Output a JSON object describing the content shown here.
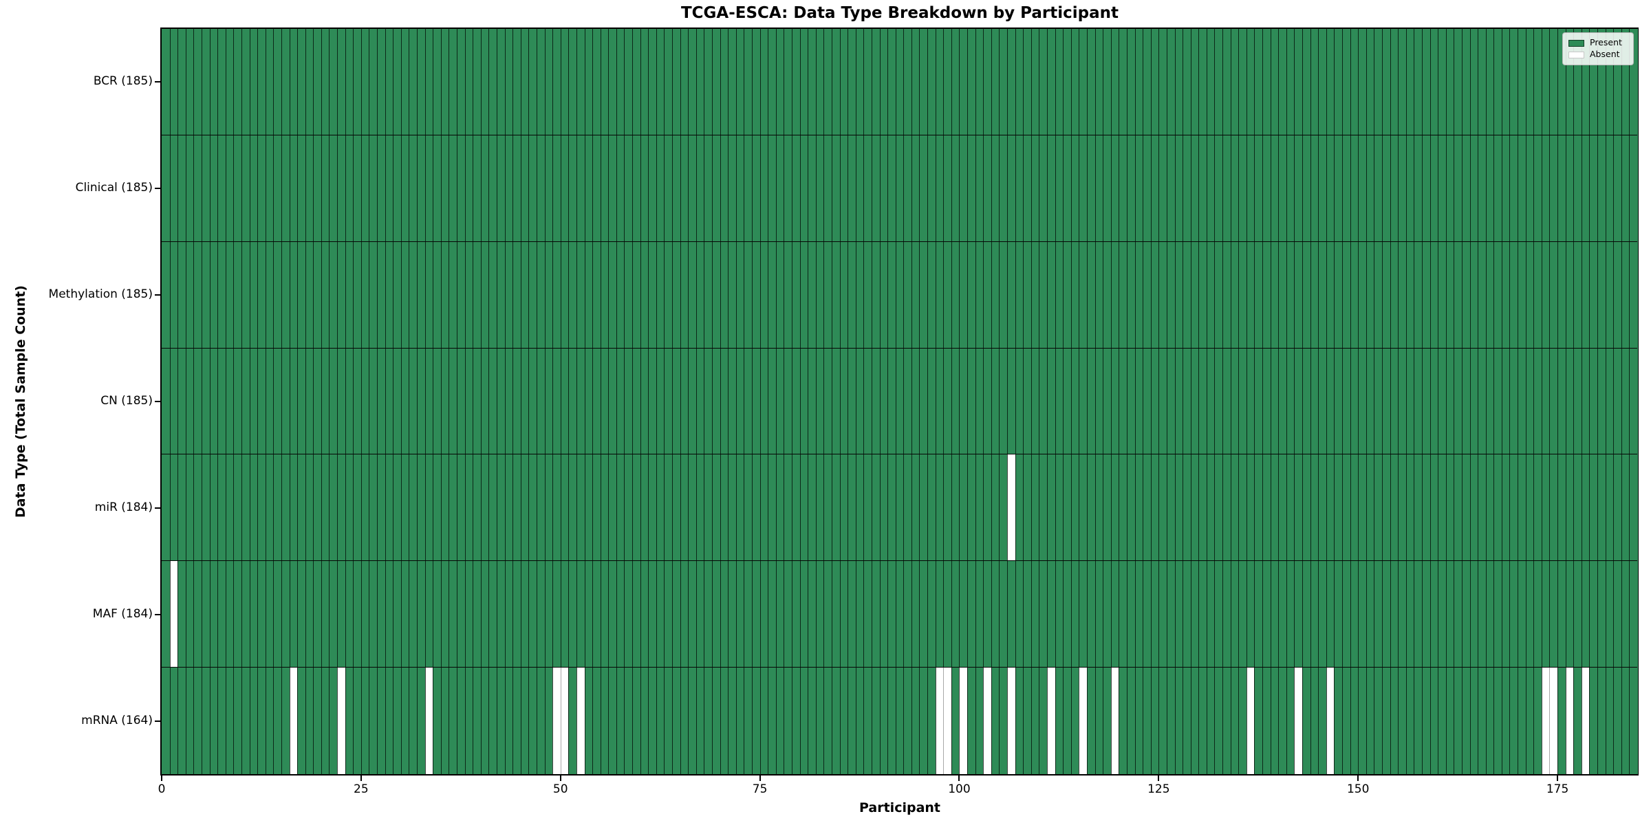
{
  "chart_data": {
    "type": "heatmap",
    "title": "TCGA-ESCA: Data Type Breakdown by Participant",
    "xlabel": "Participant",
    "ylabel": "Data Type (Total Sample Count)",
    "n_participants": 185,
    "x_range": [
      0,
      185
    ],
    "x_ticks": [
      0,
      25,
      50,
      75,
      100,
      125,
      150,
      175
    ],
    "grid": false,
    "legend_position": "upper right",
    "legend": [
      {
        "label": "Present",
        "color": "#2e8b57"
      },
      {
        "label": "Absent",
        "color": "#ffffff"
      }
    ],
    "rows": [
      {
        "label": "BCR (185)",
        "data_type": "BCR",
        "total_samples": 185,
        "absent_participants": []
      },
      {
        "label": "Clinical (185)",
        "data_type": "Clinical",
        "total_samples": 185,
        "absent_participants": []
      },
      {
        "label": "Methylation (185)",
        "data_type": "Methylation",
        "total_samples": 185,
        "absent_participants": []
      },
      {
        "label": "CN (185)",
        "data_type": "CN",
        "total_samples": 185,
        "absent_participants": []
      },
      {
        "label": "miR (184)",
        "data_type": "miR",
        "total_samples": 184,
        "absent_participants": [
          106
        ]
      },
      {
        "label": "MAF (184)",
        "data_type": "MAF",
        "total_samples": 184,
        "absent_participants": [
          1
        ]
      },
      {
        "label": "mRNA (164)",
        "data_type": "mRNA",
        "total_samples": 164,
        "absent_participants": [
          16,
          22,
          33,
          49,
          50,
          52,
          97,
          98,
          100,
          103,
          106,
          111,
          115,
          119,
          136,
          142,
          146,
          173,
          174,
          176,
          178
        ]
      }
    ]
  },
  "colors": {
    "present_fill": "#2e8b57",
    "absent_fill": "#ffffff",
    "present_edge": "rgba(0,0,0,0.72)",
    "absent_edge": "#a8a8a8",
    "row_separator": "#060606",
    "spine": "#000000",
    "background": "#ffffff"
  }
}
